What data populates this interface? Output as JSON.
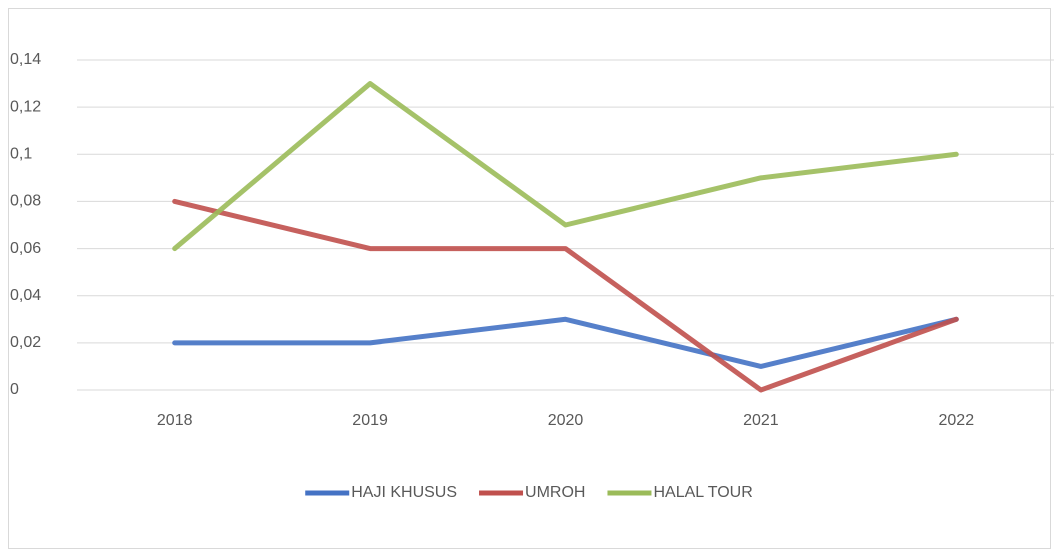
{
  "chart_data": {
    "type": "line",
    "categories": [
      "2018",
      "2019",
      "2020",
      "2021",
      "2022"
    ],
    "series": [
      {
        "name": "HAJI KHUSUS",
        "color": "#4472c4",
        "values": [
          0.02,
          0.02,
          0.03,
          0.01,
          0.03
        ]
      },
      {
        "name": "UMROH",
        "color": "#c0504d",
        "values": [
          0.08,
          0.06,
          0.06,
          0,
          0.03
        ]
      },
      {
        "name": "HALAL TOUR",
        "color": "#9bbb59",
        "values": [
          0.06,
          0.13,
          0.07,
          0.09,
          0.1
        ]
      }
    ],
    "ylim": [
      0,
      0.14
    ],
    "yticks": [
      0,
      {
        "value": 0.02,
        "label": "0,02"
      },
      {
        "value": 0.04,
        "label": "0,04"
      },
      {
        "value": 0.06,
        "label": "0,06"
      },
      {
        "value": 0.08,
        "label": "0,08"
      },
      {
        "value": 0.1,
        "label": "0,1"
      },
      {
        "value": 0.12,
        "label": "0,12"
      },
      {
        "value": 0.14,
        "label": "0,14"
      }
    ],
    "grid": true,
    "legend": "bottom"
  }
}
